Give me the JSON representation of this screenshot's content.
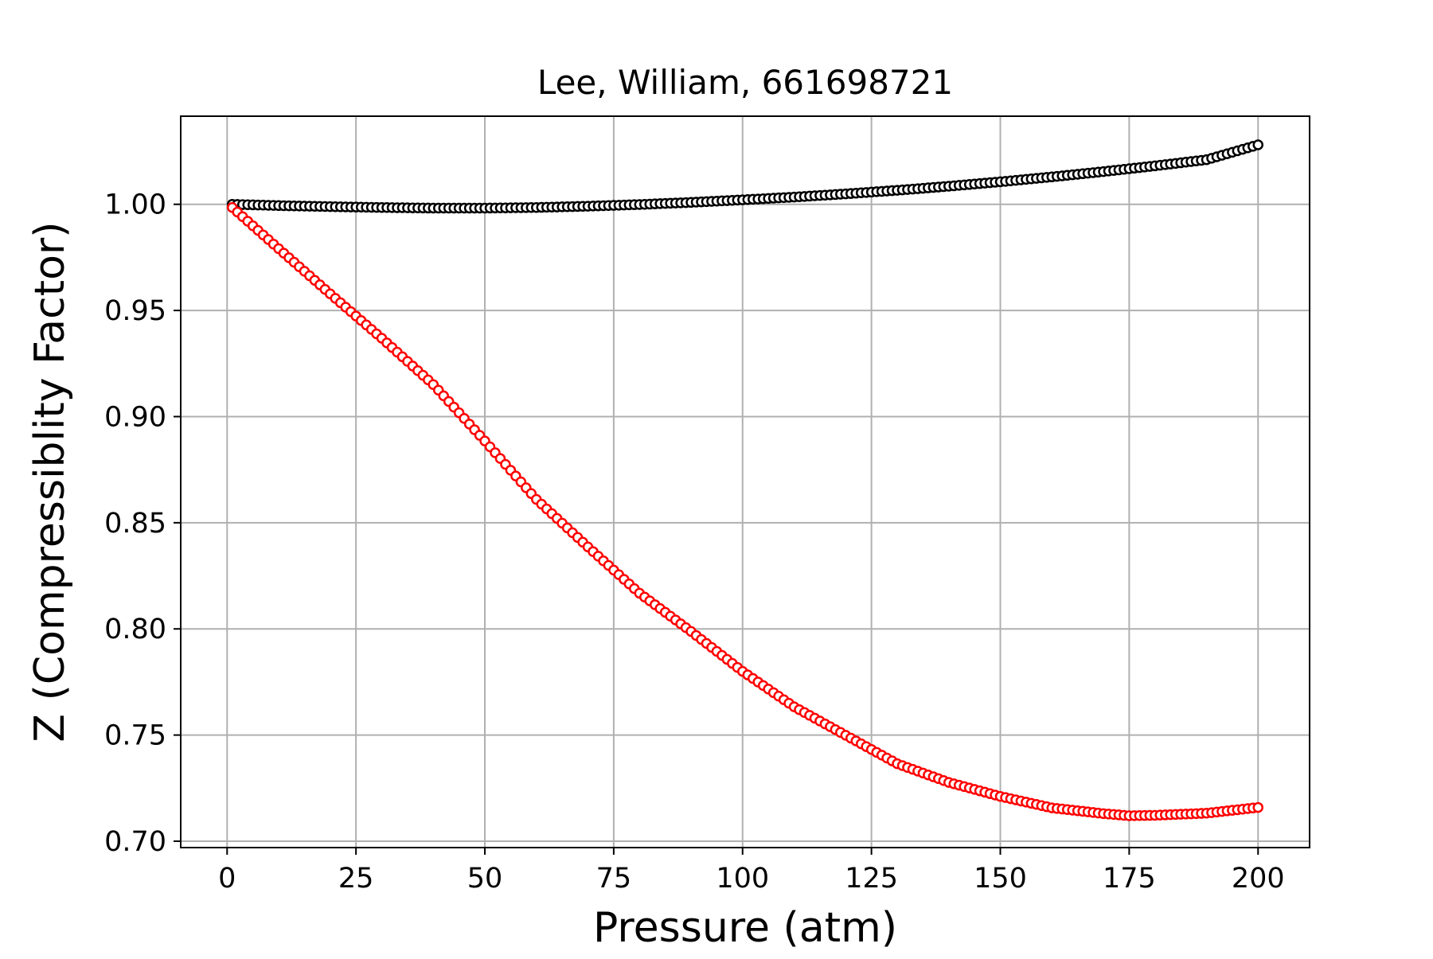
{
  "chart_data": {
    "type": "scatter",
    "title": "Lee, William, 661698721",
    "xlabel": "Pressure (atm)",
    "ylabel": "Z (Compressiblity Factor)",
    "xlim": [
      -9,
      210
    ],
    "ylim": [
      0.697,
      1.0415
    ],
    "xticks": [
      0,
      25,
      50,
      75,
      100,
      125,
      150,
      175,
      200
    ],
    "xtick_labels": [
      "0",
      "25",
      "50",
      "75",
      "100",
      "125",
      "150",
      "175",
      "200"
    ],
    "yticks": [
      0.7,
      0.75,
      0.8,
      0.85,
      0.9,
      0.95,
      1.0
    ],
    "ytick_labels": [
      "0.70",
      "0.75",
      "0.80",
      "0.85",
      "0.90",
      "0.95",
      "1.00"
    ],
    "grid": true,
    "marker": "open-circle",
    "series": [
      {
        "color": "#000000",
        "x": [
          1,
          10,
          20,
          30,
          40,
          50,
          60,
          70,
          80,
          90,
          100,
          110,
          120,
          130,
          140,
          150,
          160,
          170,
          180,
          190,
          200
        ],
        "y": [
          1.0,
          0.9994,
          0.9989,
          0.9985,
          0.9982,
          0.9982,
          0.9985,
          0.9991,
          0.9999,
          1.0009,
          1.0021,
          1.0034,
          1.0049,
          1.0066,
          1.0085,
          1.0106,
          1.0129,
          1.0154,
          1.0181,
          1.021,
          1.028
        ]
      },
      {
        "color": "#ff0000",
        "x": [
          1,
          10,
          20,
          30,
          40,
          50,
          60,
          70,
          80,
          90,
          100,
          110,
          120,
          130,
          140,
          150,
          160,
          170,
          175,
          180,
          190,
          200
        ],
        "y": [
          0.9985,
          0.9791,
          0.9578,
          0.9369,
          0.9151,
          0.8885,
          0.861,
          0.8386,
          0.8168,
          0.7988,
          0.78,
          0.7633,
          0.7499,
          0.7365,
          0.7277,
          0.7211,
          0.7157,
          0.713,
          0.712,
          0.7122,
          0.7132,
          0.7159
        ]
      }
    ]
  }
}
